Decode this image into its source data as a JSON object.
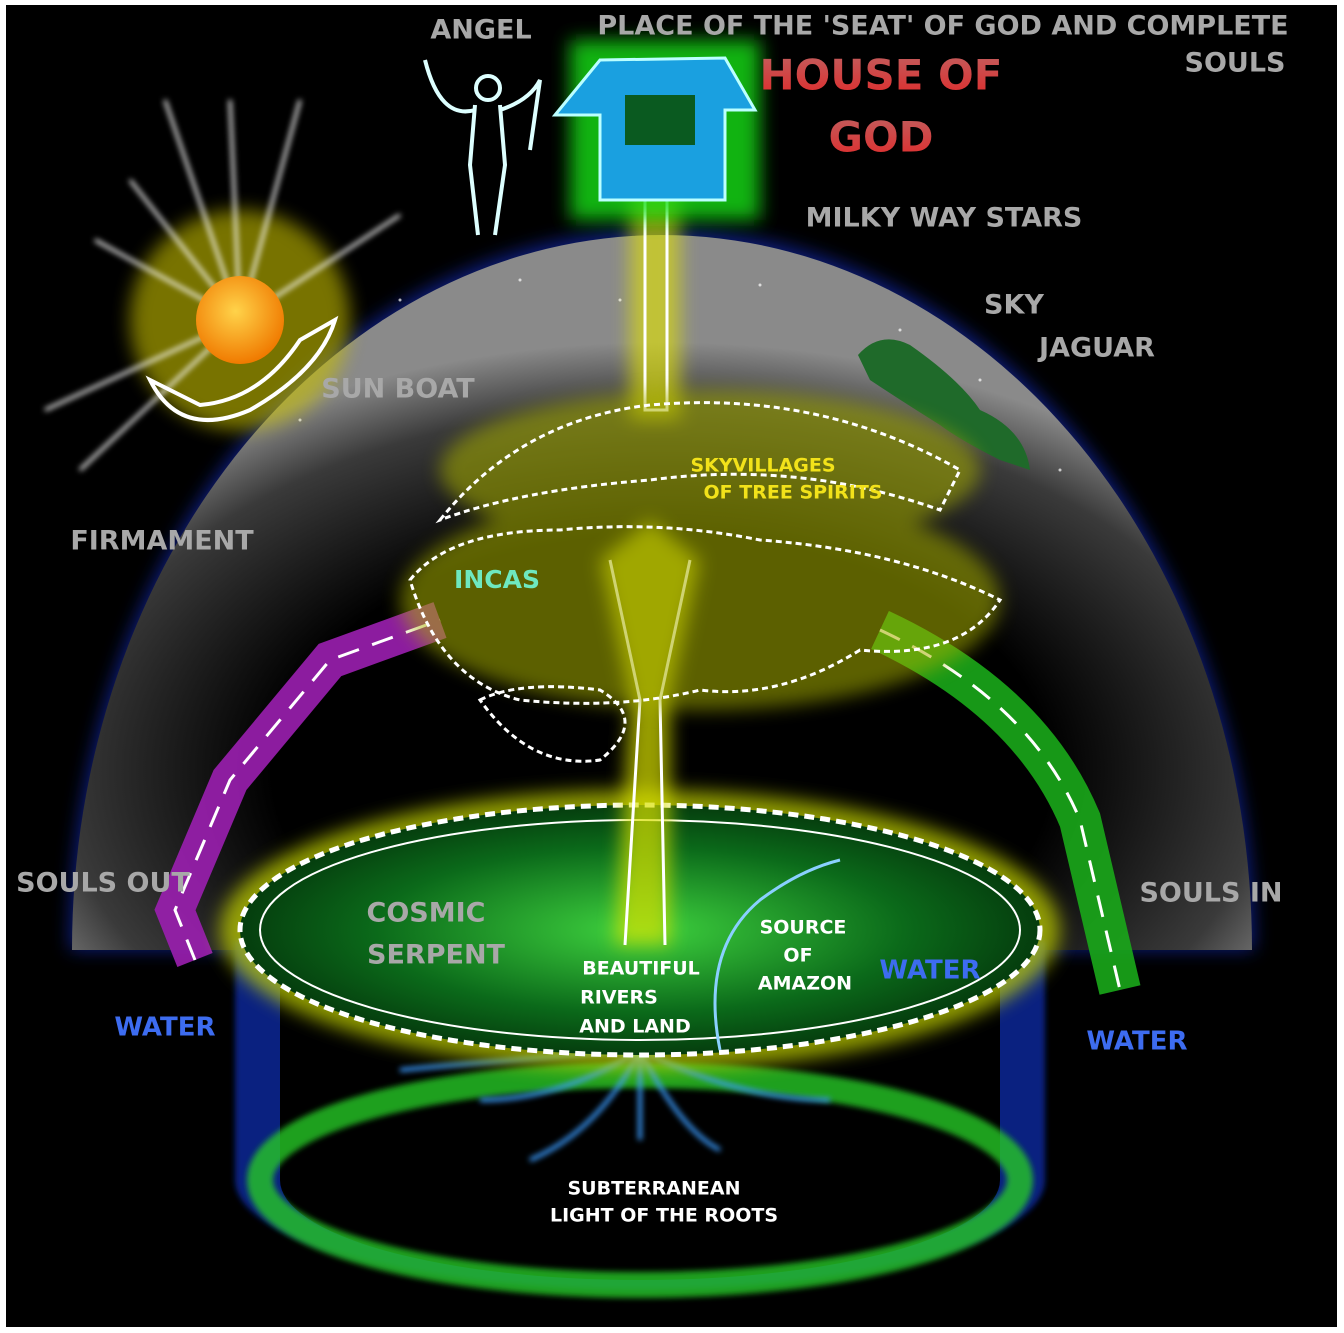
{
  "labels": [
    "ANGEL",
    "PLACE OF THE 'SEAT' OF GOD AND COMPLETE",
    "SOULS",
    "HOUSE OF",
    "GOD",
    "MILKY WAY STARS",
    "SKY",
    "JAGUAR",
    "SUN BOAT",
    "SKYVILLAGES",
    "OF TREE SPIRITS",
    "FIRMAMENT",
    "INCAS",
    "SOULS OUT",
    "COSMIC",
    "SERPENT",
    "SOURCE",
    "OF",
    "AMAZON",
    "BEAUTIFUL",
    "RIVERS",
    "AND LAND",
    "WATER",
    "SOULS IN",
    "WATER",
    "WATER",
    "SUBTERRANEAN",
    "LIGHT OF THE ROOTS"
  ]
}
